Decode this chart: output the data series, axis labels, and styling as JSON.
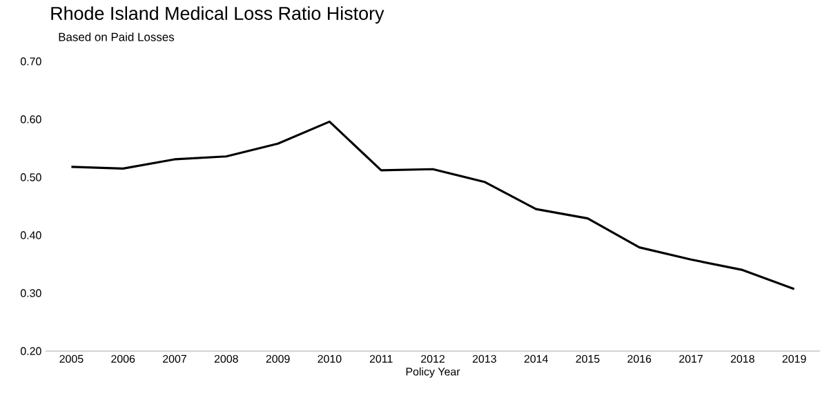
{
  "chart_data": {
    "type": "line",
    "title": "Rhode Island Medical Loss Ratio History",
    "subtitle": "Based on Paid Losses",
    "xlabel": "Policy Year",
    "categories": [
      "2005",
      "2006",
      "2007",
      "2008",
      "2009",
      "2010",
      "2011",
      "2012",
      "2013",
      "2014",
      "2015",
      "2016",
      "2017",
      "2018",
      "2019"
    ],
    "series": [
      {
        "color": "#000000",
        "values": [
          0.518,
          0.515,
          0.531,
          0.536,
          0.558,
          0.596,
          0.512,
          0.514,
          0.492,
          0.445,
          0.429,
          0.379,
          0.358,
          0.34,
          0.307
        ]
      }
    ],
    "ylim": [
      0.2,
      0.7
    ],
    "yticks": [
      {
        "value": 0.2,
        "label": "0.20"
      },
      {
        "value": 0.3,
        "label": "0.30"
      },
      {
        "value": 0.4,
        "label": "0.40"
      },
      {
        "value": 0.5,
        "label": "0.50"
      },
      {
        "value": 0.6,
        "label": "0.60"
      },
      {
        "value": 0.7,
        "label": "0.70"
      }
    ],
    "grid": false
  }
}
